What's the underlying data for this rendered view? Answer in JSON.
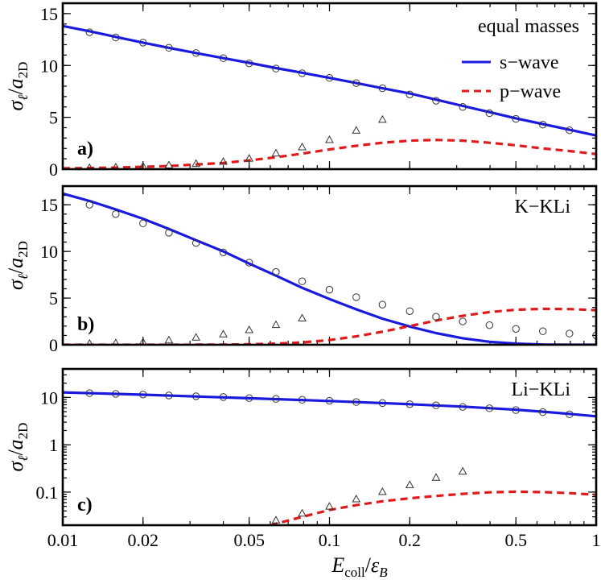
{
  "chart_data": {
    "type": "line",
    "xlabel": "E_coll/ε_B",
    "x_scale": "log",
    "xlim": [
      0.01,
      1
    ],
    "x_ticks": [
      {
        "value": 0.01,
        "label": "0.01"
      },
      {
        "value": 0.02,
        "label": "0.02"
      },
      {
        "value": 0.05,
        "label": "0.05"
      },
      {
        "value": 0.1,
        "label": "0.1"
      },
      {
        "value": 0.2,
        "label": "0.2"
      },
      {
        "value": 0.5,
        "label": "0.5"
      },
      {
        "value": 1,
        "label": "1"
      }
    ],
    "legend": {
      "placement": "top-right",
      "title": "equal masses",
      "entries": [
        {
          "label": "s−wave",
          "color": "#1a1adf",
          "style": "solid"
        },
        {
          "label": "p−wave",
          "color": "#e01a1a",
          "style": "dashed"
        }
      ]
    },
    "panels": [
      {
        "letter": "a)",
        "title": "",
        "ylabel": "σ_ℓ/a_2D",
        "y_scale": "linear",
        "ylim": [
          0,
          16
        ],
        "y_ticks": [
          {
            "value": 0,
            "label": "0"
          },
          {
            "value": 5,
            "label": "5"
          },
          {
            "value": 10,
            "label": "10"
          },
          {
            "value": 15,
            "label": "15"
          }
        ],
        "series": [
          {
            "name": "s−wave",
            "kind": "line",
            "color": "#1a1adf",
            "dash": "",
            "x": [
              0.01,
              0.0126,
              0.0158,
              0.02,
              0.025,
              0.0316,
              0.04,
              0.05,
              0.063,
              0.079,
              0.1,
              0.126,
              0.158,
              0.2,
              0.251,
              0.316,
              0.398,
              0.5,
              0.631,
              0.794,
              1
            ],
            "y": [
              13.8,
              13.3,
              12.75,
              12.2,
              11.7,
              11.2,
              10.7,
              10.25,
              9.75,
              9.3,
              8.8,
              8.3,
              7.8,
              7.3,
              6.7,
              6.1,
              5.5,
              4.9,
              4.35,
              3.8,
              3.25
            ]
          },
          {
            "name": "p−wave",
            "kind": "line",
            "color": "#e01a1a",
            "dash": "9 6",
            "x": [
              0.01,
              0.0158,
              0.025,
              0.04,
              0.05,
              0.063,
              0.079,
              0.1,
              0.126,
              0.158,
              0.2,
              0.251,
              0.316,
              0.398,
              0.5,
              0.631,
              0.794,
              1
            ],
            "y": [
              0.08,
              0.15,
              0.3,
              0.6,
              0.85,
              1.15,
              1.5,
              1.9,
              2.25,
              2.55,
              2.75,
              2.82,
              2.75,
              2.55,
              2.3,
              2.0,
              1.75,
              1.45
            ]
          },
          {
            "name": "s-wave points",
            "kind": "circle",
            "x": [
              0.0126,
              0.0158,
              0.02,
              0.025,
              0.0316,
              0.04,
              0.05,
              0.063,
              0.079,
              0.1,
              0.126,
              0.158,
              0.2,
              0.251,
              0.316,
              0.398,
              0.5,
              0.631,
              0.794
            ],
            "y": [
              13.2,
              12.7,
              12.2,
              11.7,
              11.2,
              10.7,
              10.2,
              9.7,
              9.25,
              8.8,
              8.3,
              7.8,
              7.2,
              6.6,
              6.0,
              5.4,
              4.85,
              4.3,
              3.75
            ]
          },
          {
            "name": "p-wave points",
            "kind": "triangle",
            "x": [
              0.0126,
              0.0158,
              0.02,
              0.025,
              0.0316,
              0.04,
              0.05,
              0.063,
              0.079,
              0.1,
              0.126,
              0.158
            ],
            "y": [
              0.1,
              0.15,
              0.25,
              0.35,
              0.5,
              0.7,
              1.0,
              1.5,
              2.1,
              2.8,
              3.7,
              4.75
            ]
          }
        ]
      },
      {
        "letter": "b)",
        "title": "K−KLi",
        "ylabel": "σ_ℓ/a_2D",
        "y_scale": "linear",
        "ylim": [
          0,
          17
        ],
        "y_ticks": [
          {
            "value": 0,
            "label": "0"
          },
          {
            "value": 5,
            "label": "5"
          },
          {
            "value": 10,
            "label": "10"
          },
          {
            "value": 15,
            "label": "15"
          }
        ],
        "series": [
          {
            "name": "s−wave",
            "kind": "line",
            "color": "#1a1adf",
            "dash": "",
            "x": [
              0.01,
              0.0126,
              0.0158,
              0.02,
              0.025,
              0.0316,
              0.04,
              0.05,
              0.063,
              0.079,
              0.1,
              0.126,
              0.158,
              0.2,
              0.251,
              0.316,
              0.398,
              0.5,
              0.631,
              0.794,
              1
            ],
            "y": [
              16.2,
              15.4,
              14.5,
              13.5,
              12.4,
              11.2,
              10.0,
              8.7,
              7.4,
              6.1,
              4.9,
              3.8,
              2.8,
              1.95,
              1.25,
              0.7,
              0.32,
              0.12,
              0.03,
              0.0,
              0.0
            ]
          },
          {
            "name": "p−wave",
            "kind": "line",
            "color": "#e01a1a",
            "dash": "9 6",
            "x": [
              0.01,
              0.0251,
              0.04,
              0.05,
              0.063,
              0.079,
              0.1,
              0.126,
              0.158,
              0.2,
              0.251,
              0.316,
              0.398,
              0.5,
              0.631,
              0.794,
              1
            ],
            "y": [
              0.0,
              0.0,
              0.02,
              0.05,
              0.12,
              0.25,
              0.5,
              0.9,
              1.4,
              2.0,
              2.6,
              3.1,
              3.5,
              3.75,
              3.85,
              3.82,
              3.7
            ]
          },
          {
            "name": "s-wave points",
            "kind": "circle",
            "x": [
              0.0126,
              0.0158,
              0.02,
              0.025,
              0.0316,
              0.04,
              0.05,
              0.063,
              0.079,
              0.1,
              0.126,
              0.158,
              0.2,
              0.251,
              0.316,
              0.398,
              0.5,
              0.631,
              0.794,
              1
            ],
            "y": [
              15.0,
              14.0,
              13.0,
              12.0,
              10.9,
              9.9,
              8.8,
              7.8,
              6.8,
              5.9,
              5.1,
              4.3,
              3.6,
              3.0,
              2.5,
              2.1,
              1.7,
              1.45,
              1.2,
              1.0
            ]
          },
          {
            "name": "p-wave points",
            "kind": "triangle",
            "x": [
              0.0126,
              0.0158,
              0.02,
              0.025,
              0.0316,
              0.04,
              0.05,
              0.063,
              0.079
            ],
            "y": [
              0.1,
              0.15,
              0.25,
              0.45,
              0.75,
              1.1,
              1.55,
              2.1,
              2.8
            ]
          }
        ]
      },
      {
        "letter": "c)",
        "title": "Li−KLi",
        "ylabel": "σ_ℓ/a_2D",
        "y_scale": "log",
        "ylim": [
          0.02,
          40
        ],
        "y_ticks": [
          {
            "value": 0.1,
            "label": "0.1"
          },
          {
            "value": 1,
            "label": "1"
          },
          {
            "value": 10,
            "label": "10"
          }
        ],
        "series": [
          {
            "name": "s−wave",
            "kind": "line",
            "color": "#1a1adf",
            "dash": "",
            "x": [
              0.01,
              0.02,
              0.05,
              0.1,
              0.2,
              0.316,
              0.5,
              0.631,
              0.794,
              1
            ],
            "y": [
              12.8,
              11.4,
              9.6,
              8.4,
              7.2,
              6.4,
              5.5,
              5.0,
              4.5,
              4.0
            ]
          },
          {
            "name": "p−wave",
            "kind": "line",
            "color": "#e01a1a",
            "dash": "9 6",
            "x": [
              0.06,
              0.079,
              0.1,
              0.126,
              0.158,
              0.2,
              0.251,
              0.316,
              0.398,
              0.5,
              0.631,
              0.794,
              1
            ],
            "y": [
              0.02,
              0.03,
              0.042,
              0.053,
              0.064,
              0.074,
              0.083,
              0.092,
              0.099,
              0.102,
              0.1,
              0.095,
              0.088
            ]
          },
          {
            "name": "s-wave points",
            "kind": "circle",
            "x": [
              0.0126,
              0.0158,
              0.02,
              0.025,
              0.0316,
              0.04,
              0.05,
              0.063,
              0.079,
              0.1,
              0.126,
              0.158,
              0.2,
              0.251,
              0.316,
              0.398,
              0.5,
              0.631,
              0.794
            ],
            "y": [
              12.3,
              11.9,
              11.5,
              11.0,
              10.6,
              10.2,
              9.7,
              9.3,
              8.9,
              8.5,
              8.0,
              7.6,
              7.2,
              6.8,
              6.3,
              5.9,
              5.4,
              4.9,
              4.4
            ]
          },
          {
            "name": "p-wave points",
            "kind": "triangle",
            "x": [
              0.063,
              0.079,
              0.1,
              0.126,
              0.158,
              0.2,
              0.251,
              0.316
            ],
            "y": [
              0.025,
              0.035,
              0.049,
              0.07,
              0.1,
              0.14,
              0.2,
              0.27
            ]
          }
        ]
      }
    ]
  }
}
